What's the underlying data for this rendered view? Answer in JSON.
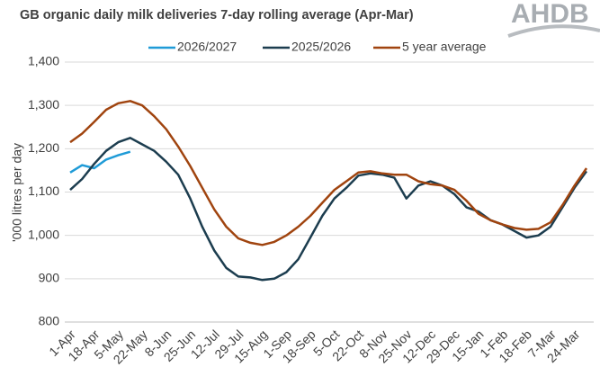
{
  "chart_data": {
    "type": "line",
    "title": "GB organic daily milk deliveries 7-day rolling average (Apr-Mar)",
    "logo": "AHDB",
    "y_label": "'000 litres per day",
    "categories": [
      "1-Apr",
      null,
      "18-Apr",
      null,
      "5-May",
      null,
      "22-May",
      null,
      "8-Jun",
      null,
      "25-Jun",
      null,
      "12-Jul",
      null,
      "29-Jul",
      null,
      "15-Aug",
      null,
      "1-Sep",
      null,
      "18-Sep",
      null,
      "5-Oct",
      null,
      "22-Oct",
      null,
      "8-Nov",
      null,
      "25-Nov",
      null,
      "12-Dec",
      null,
      "29-Dec",
      null,
      "15-Jan",
      null,
      "1-Feb",
      null,
      "18-Feb",
      null,
      "7-Mar",
      null,
      "24-Mar",
      null
    ],
    "series": [
      {
        "name": "2026/2027",
        "color": "#1f9bd7",
        "values": [
          1145,
          1162,
          1155,
          1175,
          1185,
          1193,
          null,
          null,
          null,
          null,
          null,
          null,
          null,
          null,
          null,
          null,
          null,
          null,
          null,
          null,
          null,
          null,
          null,
          null,
          null,
          null,
          null,
          null,
          null,
          null,
          null,
          null,
          null,
          null,
          null,
          null,
          null,
          null,
          null,
          null,
          null,
          null,
          null,
          null
        ]
      },
      {
        "name": "2025/2026",
        "color": "#1c3d4f",
        "values": [
          1105,
          1130,
          1165,
          1195,
          1215,
          1225,
          1210,
          1195,
          1170,
          1140,
          1085,
          1020,
          965,
          925,
          905,
          903,
          897,
          900,
          915,
          945,
          995,
          1045,
          1085,
          1110,
          1138,
          1143,
          1140,
          1133,
          1085,
          1115,
          1125,
          1115,
          1095,
          1065,
          1055,
          1035,
          1025,
          1010,
          995,
          1000,
          1020,
          1065,
          1110,
          1148
        ]
      },
      {
        "name": "5 year average",
        "color": "#a0440f",
        "values": [
          1215,
          1235,
          1262,
          1290,
          1305,
          1310,
          1300,
          1275,
          1245,
          1205,
          1160,
          1110,
          1060,
          1020,
          993,
          983,
          978,
          985,
          1000,
          1020,
          1045,
          1075,
          1105,
          1125,
          1145,
          1148,
          1143,
          1140,
          1140,
          1125,
          1118,
          1115,
          1105,
          1080,
          1050,
          1035,
          1025,
          1017,
          1013,
          1015,
          1030,
          1070,
          1115,
          1155
        ]
      }
    ],
    "ylim": [
      800,
      1400
    ],
    "yticks": [
      800,
      900,
      {
        "value": 1000,
        "label": "1,000"
      },
      {
        "value": 1100,
        "label": "1,100"
      },
      {
        "value": 1200,
        "label": "1,200"
      },
      {
        "value": 1300,
        "label": "1,300"
      },
      {
        "value": 1400,
        "label": "1,400"
      }
    ],
    "grid": true
  }
}
